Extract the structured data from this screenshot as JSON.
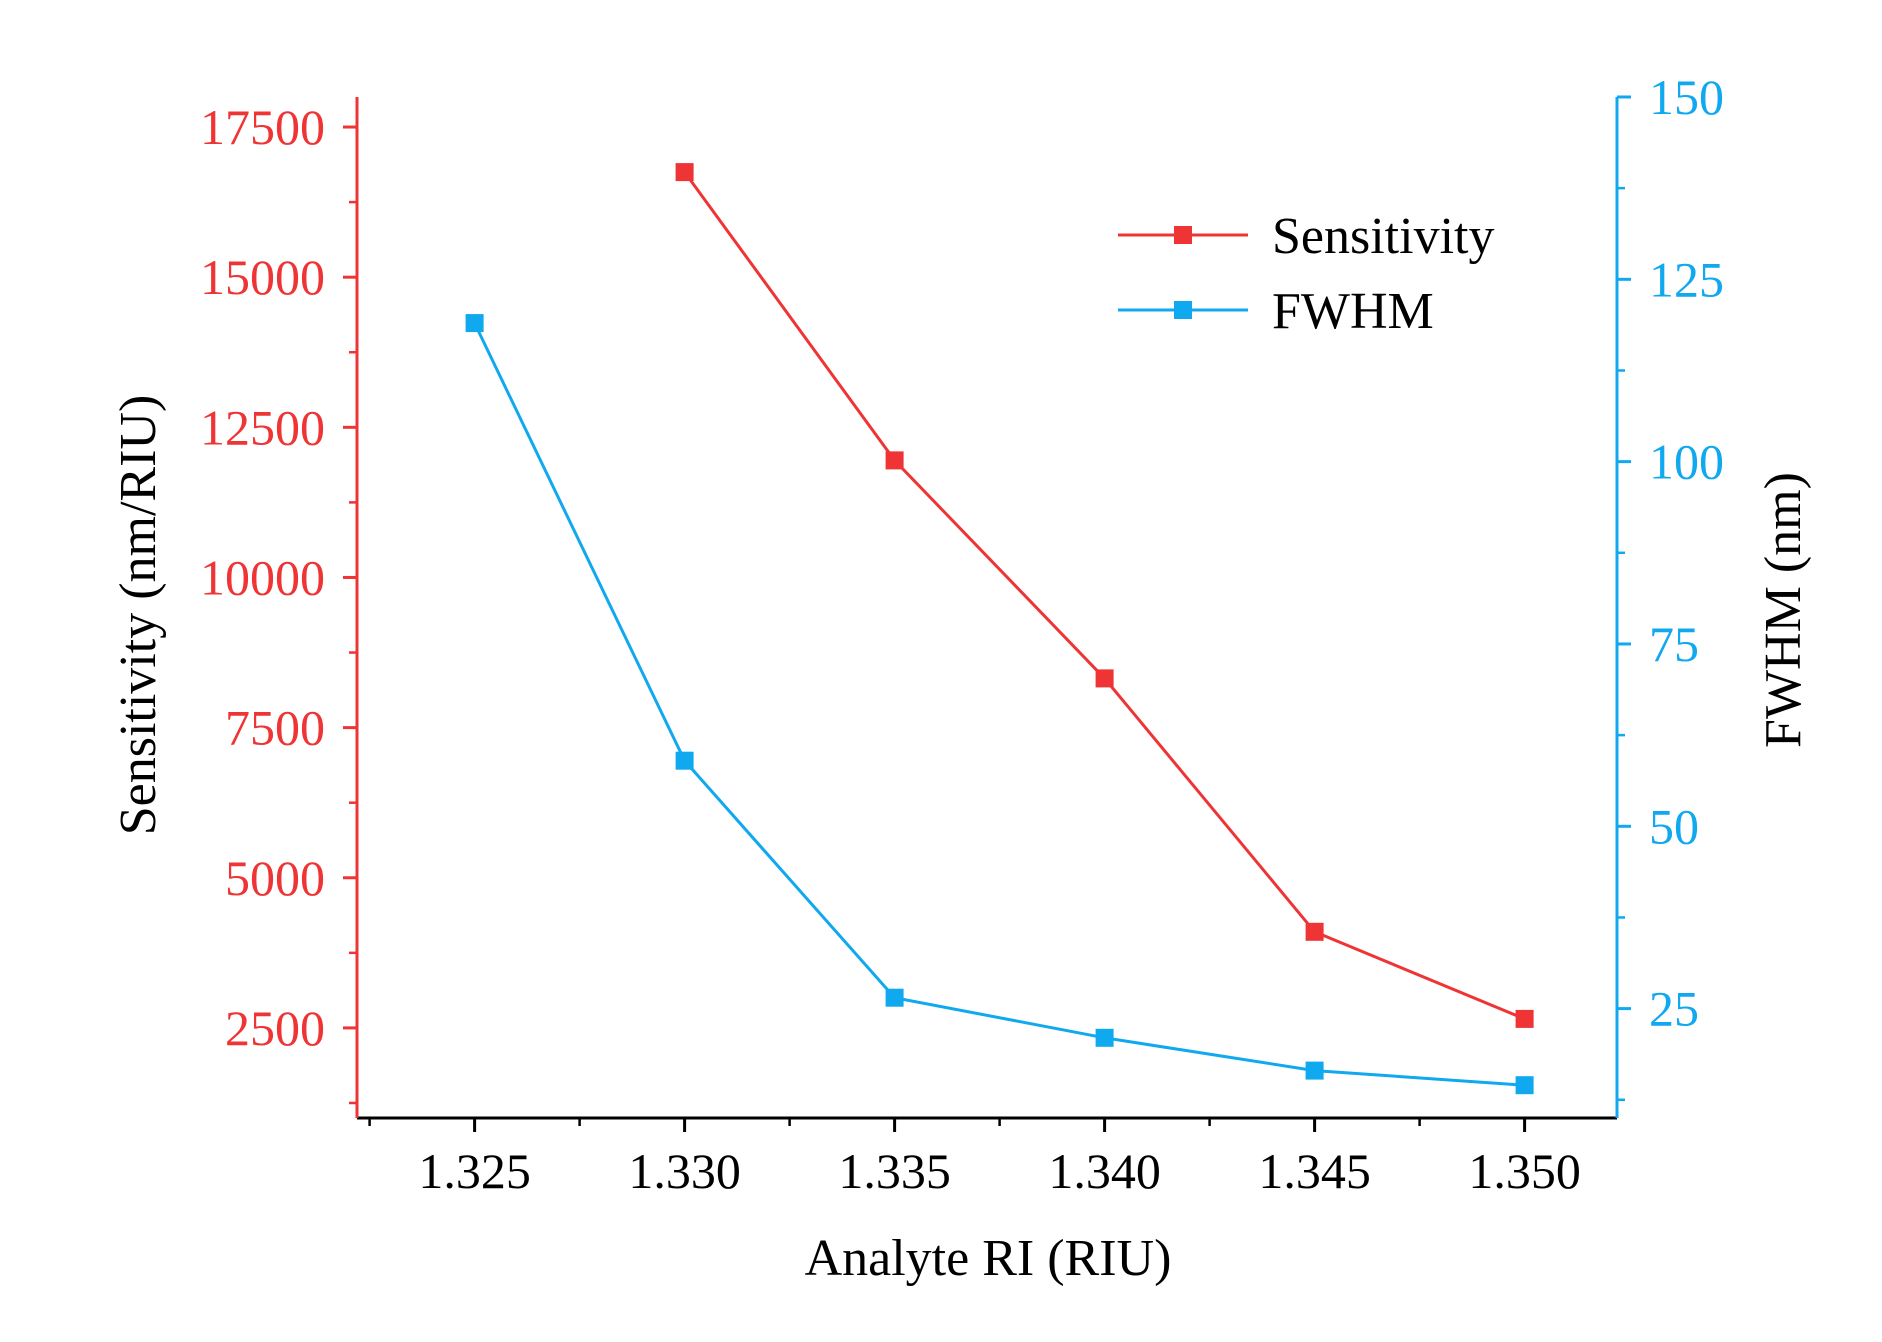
{
  "chart_data": {
    "type": "line",
    "title": "",
    "xlabel": "Analyte RI (RIU)",
    "ylabel_left": "Sensitivity (nm/RIU)",
    "ylabel_right": "FWHM (nm)",
    "xlim": [
      1.3222,
      1.3522
    ],
    "ylim_left": [
      1000,
      18000
    ],
    "ylim_right": [
      10,
      150
    ],
    "x_ticks": [
      "1.325",
      "1.330",
      "1.335",
      "1.340",
      "1.345",
      "1.350"
    ],
    "y_left_ticks": [
      "2500",
      "5000",
      "7500",
      "10000",
      "12500",
      "15000",
      "17500"
    ],
    "y_right_ticks": [
      "25",
      "50",
      "75",
      "100",
      "125",
      "150"
    ],
    "legend_position": "top-right",
    "colors": {
      "sensitivity": "#ee3434",
      "fwhm": "#10a8ee",
      "axis": "#000000"
    },
    "series": [
      {
        "name": "Sensitivity",
        "axis": "left",
        "x": [
          1.33,
          1.335,
          1.34,
          1.345,
          1.35
        ],
        "values": [
          16750,
          11950,
          8320,
          4100,
          2650
        ]
      },
      {
        "name": "FWHM",
        "axis": "right",
        "x": [
          1.325,
          1.33,
          1.335,
          1.34,
          1.345,
          1.35
        ],
        "values": [
          119,
          59,
          26.5,
          21,
          16.5,
          14.5
        ]
      }
    ]
  }
}
